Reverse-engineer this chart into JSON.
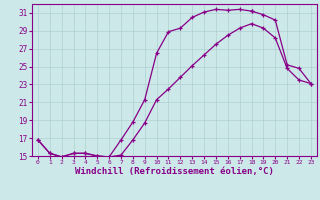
{
  "background_color": "#cce8e8",
  "line_color": "#880088",
  "marker": "+",
  "xlabel": "Windchill (Refroidissement éolien,°C)",
  "xlabel_fontsize": 6.5,
  "xlim": [
    -0.5,
    23.5
  ],
  "ylim": [
    15,
    32
  ],
  "yticks": [
    15,
    17,
    19,
    21,
    23,
    25,
    27,
    29,
    31
  ],
  "xticks": [
    0,
    1,
    2,
    3,
    4,
    5,
    6,
    7,
    8,
    9,
    10,
    11,
    12,
    13,
    14,
    15,
    16,
    17,
    18,
    19,
    20,
    21,
    22,
    23
  ],
  "grid_color": "#b0d0d0",
  "curve1_x": [
    0,
    1,
    2,
    3,
    4,
    5,
    6,
    7,
    8,
    9,
    10,
    11,
    12,
    13,
    14,
    15,
    16,
    17,
    18
  ],
  "curve1_y": [
    16.8,
    15.3,
    14.9,
    15.3,
    15.3,
    15.0,
    14.9,
    16.8,
    18.8,
    21.3,
    26.5,
    28.9,
    29.3,
    30.5,
    31.1,
    31.4,
    31.3,
    31.4,
    31.2
  ],
  "curve2_x": [
    18,
    19,
    20,
    21,
    22,
    23
  ],
  "curve2_y": [
    31.2,
    30.8,
    30.2,
    25.2,
    24.8,
    23.1
  ],
  "curve3_x": [
    0,
    1,
    2,
    3,
    4,
    5,
    6,
    7,
    8,
    9,
    10,
    11,
    12,
    13,
    14,
    15,
    16,
    17,
    18,
    19,
    20,
    21,
    22,
    23
  ],
  "curve3_y": [
    16.8,
    15.3,
    14.9,
    15.3,
    15.3,
    15.0,
    14.9,
    15.1,
    16.8,
    18.7,
    21.3,
    22.5,
    23.8,
    25.1,
    26.3,
    27.5,
    28.5,
    29.3,
    29.8,
    29.3,
    28.2,
    24.8,
    23.5,
    23.1
  ]
}
